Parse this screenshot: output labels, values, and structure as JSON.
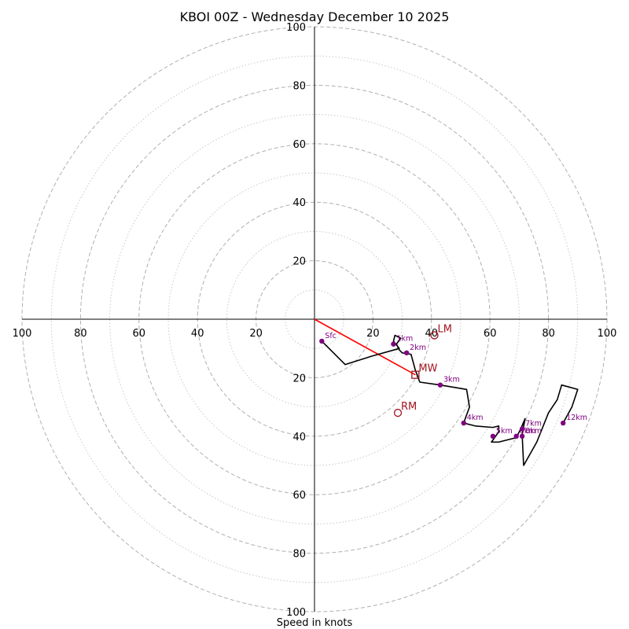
{
  "chart_data": {
    "type": "hodograph",
    "title": "KBOI 00Z - Wednesday December 10 2025",
    "xlabel": "Speed in knots",
    "units": "knots",
    "range": [
      -100,
      100
    ],
    "major_rings": [
      20,
      40,
      60,
      80,
      100
    ],
    "minor_rings": [
      10,
      30,
      50,
      70,
      90
    ],
    "x_tick_values": [
      -100,
      -80,
      -60,
      -40,
      -20,
      20,
      40,
      60,
      80,
      100
    ],
    "x_tick_labels": [
      "100",
      "80",
      "60",
      "40",
      "20",
      "20",
      "40",
      "60",
      "80",
      "100"
    ],
    "y_tick_values": [
      100,
      80,
      60,
      40,
      20,
      -20,
      -40,
      -60,
      -80,
      -100
    ],
    "y_tick_labels": [
      "100",
      "80",
      "60",
      "40",
      "20",
      "20",
      "40",
      "60",
      "80",
      "100"
    ],
    "hodograph_line": [
      [
        2.5,
        -7.5
      ],
      [
        10.5,
        -15.5
      ],
      [
        20,
        -12.5
      ],
      [
        29,
        -10
      ],
      [
        27,
        -7.5
      ],
      [
        27.5,
        -5.5
      ],
      [
        29.5,
        -6.5
      ],
      [
        28,
        -8.5
      ],
      [
        29,
        -10.5
      ],
      [
        30,
        -11.5
      ],
      [
        33,
        -12
      ],
      [
        34.5,
        -17.5
      ],
      [
        36,
        -21.5
      ],
      [
        43,
        -22.5
      ],
      [
        52,
        -24
      ],
      [
        53,
        -30
      ],
      [
        51,
        -35.5
      ],
      [
        55,
        -36.5
      ],
      [
        61,
        -37
      ],
      [
        63,
        -36.5
      ],
      [
        63,
        -38.5
      ],
      [
        60.5,
        -42
      ],
      [
        63,
        -42
      ],
      [
        69,
        -40.5
      ],
      [
        70.5,
        -37.5
      ],
      [
        72,
        -34
      ],
      [
        71,
        -39.5
      ],
      [
        71.5,
        -50
      ],
      [
        76,
        -42
      ],
      [
        80,
        -32
      ],
      [
        83,
        -27.5
      ],
      [
        84.5,
        -22.5
      ],
      [
        90,
        -24
      ],
      [
        88,
        -30
      ],
      [
        85,
        -35.5
      ]
    ],
    "height_markers": [
      {
        "label": "Sfc",
        "u": 2.5,
        "v": -7.5
      },
      {
        "label": "1km",
        "u": 27,
        "v": -8.5
      },
      {
        "label": "2km",
        "u": 31.5,
        "v": -11.5
      },
      {
        "label": "3km",
        "u": 43,
        "v": -22.5
      },
      {
        "label": "4km",
        "u": 51,
        "v": -35.5
      },
      {
        "label": "5km",
        "u": 61,
        "v": -40
      },
      {
        "label": "6km",
        "u": 69,
        "v": -40
      },
      {
        "label": "7km",
        "u": 71,
        "v": -37.5
      },
      {
        "label": "8km",
        "u": 71,
        "v": -40
      },
      {
        "label": "12km",
        "u": 85,
        "v": -35.5
      }
    ],
    "storm_motion": [
      {
        "label": "LM",
        "u": 41,
        "v": -5.5,
        "marker": "circle"
      },
      {
        "label": "MW",
        "u": 34.5,
        "v": -19,
        "marker": "square"
      },
      {
        "label": "RM",
        "u": 28.5,
        "v": -32,
        "marker": "circle"
      }
    ],
    "shear_vector": {
      "from": [
        0,
        0
      ],
      "to": [
        34.5,
        -19
      ]
    },
    "colors": {
      "hodograph": "#000000",
      "height_marker": "#800080",
      "storm_motion": "#a0141e",
      "shear_vector": "#ff0000",
      "major_ring": "#b0b0b0",
      "minor_ring": "#c8c8c8"
    }
  }
}
